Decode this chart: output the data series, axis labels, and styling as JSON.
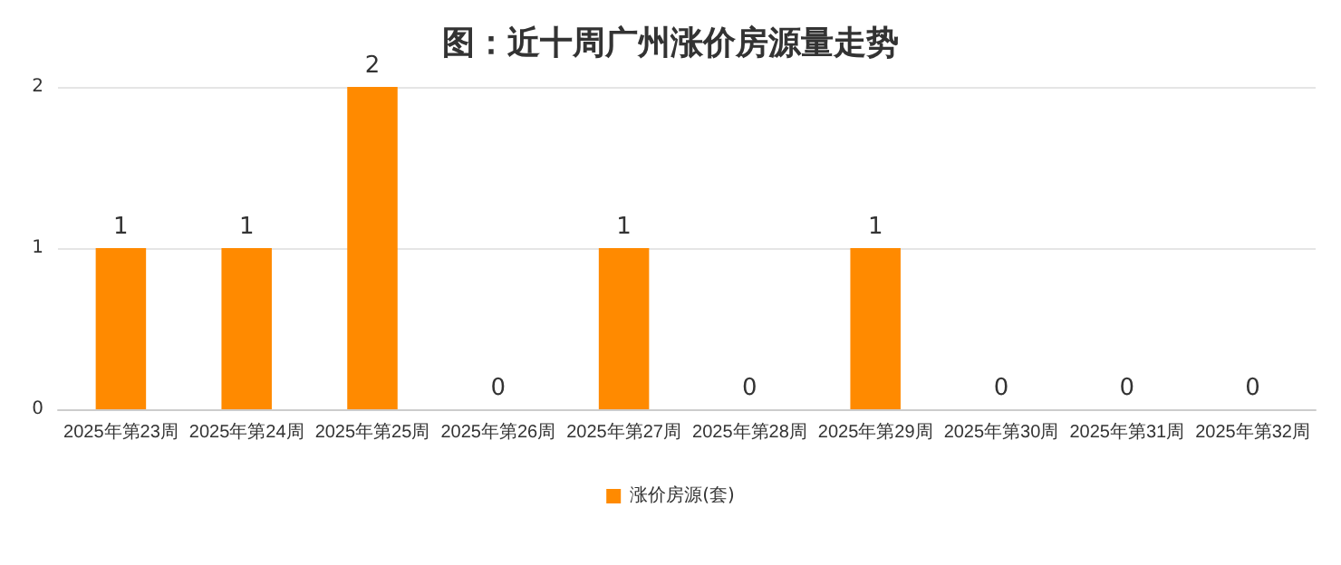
{
  "chart_data": {
    "type": "bar",
    "title": "图：近十周广州涨价房源量走势",
    "categories": [
      "2025年第23周",
      "2025年第24周",
      "2025年第25周",
      "2025年第26周",
      "2025年第27周",
      "2025年第28周",
      "2025年第29周",
      "2025年第30周",
      "2025年第31周",
      "2025年第32周"
    ],
    "series": [
      {
        "name": "涨价房源(套)",
        "color": "#ff8a00",
        "values": [
          1,
          1,
          2,
          0,
          1,
          0,
          1,
          0,
          0,
          0
        ]
      }
    ],
    "ylim": [
      0,
      2
    ],
    "yticks": [
      0,
      1,
      2
    ],
    "grid": "y",
    "legend": "bottom",
    "data_labels": true
  }
}
